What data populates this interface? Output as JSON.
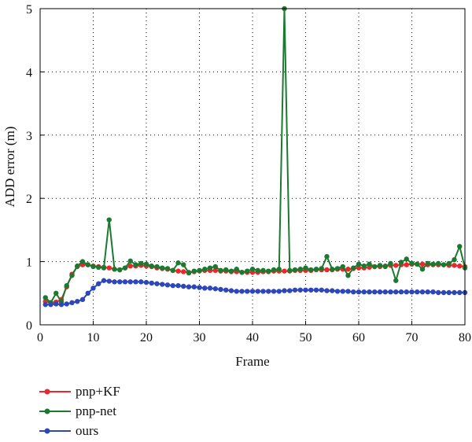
{
  "chart_data": {
    "type": "line",
    "xlabel": "Frame",
    "ylabel": "ADD error (m)",
    "xlim": [
      0,
      80
    ],
    "ylim": [
      0,
      5
    ],
    "xticks": [
      0,
      10,
      20,
      30,
      40,
      50,
      60,
      70,
      80
    ],
    "yticks": [
      0,
      1,
      2,
      3,
      4,
      5
    ],
    "grid": true,
    "legend_position": "below",
    "x": [
      1,
      2,
      3,
      4,
      5,
      6,
      7,
      8,
      9,
      10,
      11,
      12,
      13,
      14,
      15,
      16,
      17,
      18,
      19,
      20,
      21,
      22,
      23,
      24,
      25,
      26,
      27,
      28,
      29,
      30,
      31,
      32,
      33,
      34,
      35,
      36,
      37,
      38,
      39,
      40,
      41,
      42,
      43,
      44,
      45,
      46,
      47,
      48,
      49,
      50,
      51,
      52,
      53,
      54,
      55,
      56,
      57,
      58,
      59,
      60,
      61,
      62,
      63,
      64,
      65,
      66,
      67,
      68,
      69,
      70,
      71,
      72,
      73,
      74,
      75,
      76,
      77,
      78,
      79,
      80
    ],
    "series": [
      {
        "name": "pnp+KF",
        "color": "#e8282a",
        "values": [
          0.37,
          0.35,
          0.36,
          0.4,
          0.6,
          0.8,
          0.92,
          0.95,
          0.95,
          0.93,
          0.92,
          0.91,
          0.9,
          0.88,
          0.87,
          0.9,
          0.93,
          0.93,
          0.94,
          0.93,
          0.92,
          0.9,
          0.89,
          0.88,
          0.86,
          0.85,
          0.84,
          0.83,
          0.84,
          0.85,
          0.86,
          0.86,
          0.86,
          0.85,
          0.85,
          0.84,
          0.84,
          0.83,
          0.83,
          0.83,
          0.83,
          0.84,
          0.84,
          0.85,
          0.85,
          0.85,
          0.85,
          0.86,
          0.86,
          0.86,
          0.86,
          0.87,
          0.87,
          0.87,
          0.87,
          0.88,
          0.88,
          0.88,
          0.89,
          0.9,
          0.9,
          0.91,
          0.92,
          0.92,
          0.93,
          0.94,
          0.94,
          0.95,
          0.95,
          0.96,
          0.96,
          0.96,
          0.95,
          0.95,
          0.95,
          0.95,
          0.94,
          0.94,
          0.93,
          0.92
        ]
      },
      {
        "name": "pnp-net",
        "color": "#1b7a2f",
        "values": [
          0.43,
          0.35,
          0.5,
          0.36,
          0.62,
          0.78,
          0.93,
          1.0,
          0.95,
          0.92,
          0.91,
          0.9,
          1.66,
          0.88,
          0.87,
          0.9,
          1.01,
          0.95,
          0.97,
          0.96,
          0.93,
          0.92,
          0.9,
          0.89,
          0.86,
          0.98,
          0.95,
          0.82,
          0.85,
          0.86,
          0.88,
          0.9,
          0.92,
          0.86,
          0.87,
          0.85,
          0.88,
          0.83,
          0.85,
          0.88,
          0.86,
          0.86,
          0.85,
          0.87,
          0.88,
          5.0,
          0.86,
          0.87,
          0.88,
          0.9,
          0.87,
          0.88,
          0.89,
          1.08,
          0.88,
          0.89,
          0.92,
          0.78,
          0.9,
          0.96,
          0.93,
          0.96,
          0.92,
          0.94,
          0.92,
          0.97,
          0.7,
          0.99,
          1.04,
          0.97,
          0.96,
          0.88,
          0.97,
          0.96,
          0.97,
          0.95,
          0.97,
          1.03,
          1.24,
          0.9
        ]
      },
      {
        "name": "ours",
        "color": "#2d46b9",
        "values": [
          0.32,
          0.32,
          0.33,
          0.32,
          0.33,
          0.35,
          0.37,
          0.4,
          0.5,
          0.58,
          0.65,
          0.7,
          0.69,
          0.68,
          0.68,
          0.68,
          0.68,
          0.68,
          0.68,
          0.67,
          0.66,
          0.65,
          0.64,
          0.63,
          0.62,
          0.62,
          0.61,
          0.6,
          0.6,
          0.59,
          0.58,
          0.58,
          0.57,
          0.56,
          0.55,
          0.54,
          0.53,
          0.53,
          0.53,
          0.53,
          0.53,
          0.53,
          0.53,
          0.53,
          0.53,
          0.54,
          0.54,
          0.55,
          0.55,
          0.55,
          0.55,
          0.55,
          0.55,
          0.54,
          0.54,
          0.53,
          0.53,
          0.53,
          0.52,
          0.52,
          0.52,
          0.52,
          0.52,
          0.52,
          0.52,
          0.52,
          0.52,
          0.52,
          0.52,
          0.52,
          0.52,
          0.52,
          0.52,
          0.52,
          0.51,
          0.51,
          0.51,
          0.51,
          0.51,
          0.51
        ]
      }
    ]
  }
}
